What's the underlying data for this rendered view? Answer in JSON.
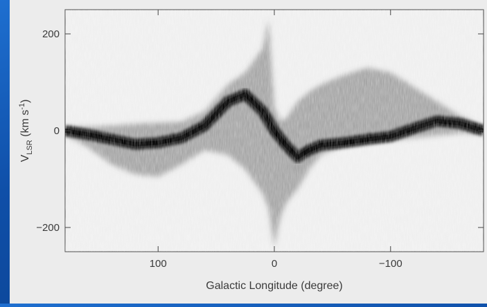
{
  "chart_data": {
    "type": "heatmap",
    "title": "",
    "xlabel": "Galactic Longitude (degree)",
    "ylabel_main": "V",
    "ylabel_sub": "LSR",
    "ylabel_units_pre": " (km s",
    "ylabel_units_sup": "-1",
    "ylabel_units_post": ")",
    "x_reversed": true,
    "xlim": [
      180,
      -180
    ],
    "ylim": [
      -250,
      250
    ],
    "x_ticks": [
      100,
      0,
      -100
    ],
    "x_tick_labels": [
      "100",
      "0",
      "−100"
    ],
    "y_ticks": [
      200,
      0,
      -200
    ],
    "y_tick_labels": [
      "200",
      "0",
      "−200"
    ],
    "emission_envelope": {
      "longitude": [
        180,
        160,
        140,
        120,
        100,
        80,
        60,
        40,
        25,
        10,
        5,
        0,
        -5,
        -10,
        -20,
        -30,
        -40,
        -60,
        -80,
        -100,
        -120,
        -140,
        -160,
        -180
      ],
      "v_upper": [
        8,
        8,
        10,
        14,
        16,
        18,
        40,
        95,
        120,
        170,
        230,
        50,
        20,
        25,
        60,
        80,
        95,
        115,
        130,
        120,
        90,
        60,
        30,
        8
      ],
      "v_lower": [
        -8,
        -35,
        -70,
        -90,
        -95,
        -70,
        -40,
        -50,
        -80,
        -130,
        -160,
        -240,
        -180,
        -150,
        -120,
        -80,
        -50,
        -30,
        -25,
        -20,
        -15,
        -10,
        -5,
        -8
      ]
    },
    "dense_ridge": {
      "longitude": [
        180,
        160,
        140,
        120,
        100,
        80,
        60,
        40,
        25,
        10,
        0,
        -10,
        -20,
        -30,
        -40,
        -60,
        -80,
        -100,
        -120,
        -140,
        -160,
        -180
      ],
      "velocity": [
        0,
        -8,
        -18,
        -28,
        -25,
        -15,
        10,
        60,
        75,
        40,
        0,
        -30,
        -55,
        -40,
        -30,
        -25,
        -18,
        -12,
        5,
        20,
        15,
        0
      ]
    },
    "series_color": "#000000",
    "background_color": "#efefef"
  }
}
